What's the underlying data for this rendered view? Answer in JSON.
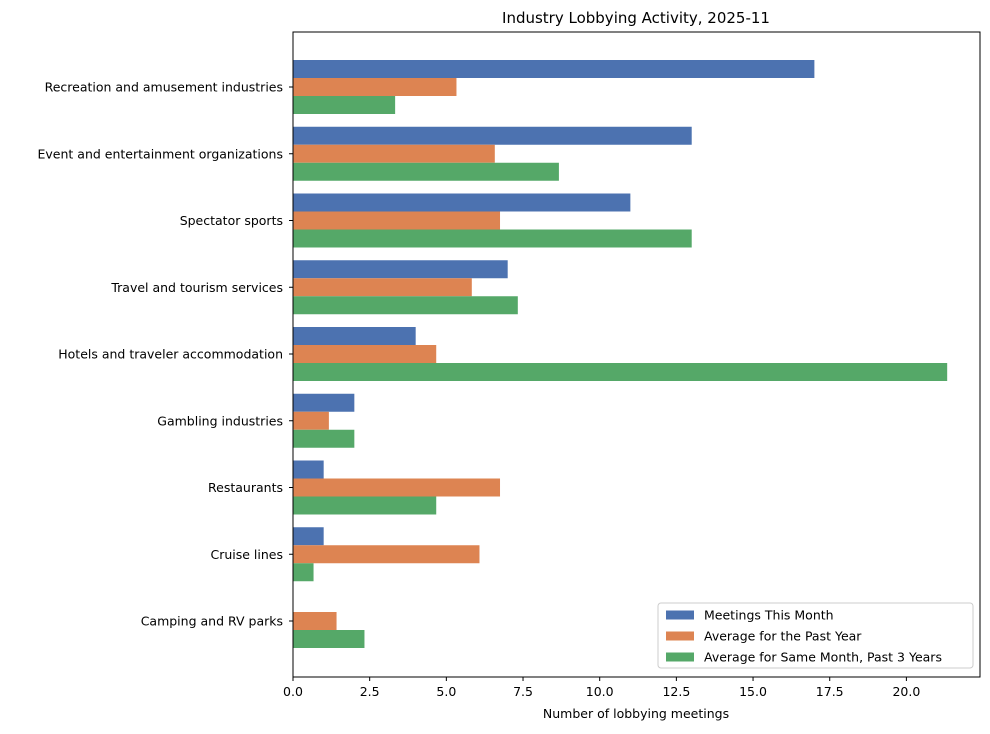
{
  "chart_data": {
    "type": "bar",
    "orientation": "horizontal",
    "title": "Industry Lobbying Activity, 2025-11",
    "xlabel": "Number of lobbying meetings",
    "ylabel": "",
    "xlim": [
      0,
      22.4
    ],
    "x_ticks": [
      0.0,
      2.5,
      5.0,
      7.5,
      10.0,
      12.5,
      15.0,
      17.5,
      20.0
    ],
    "x_tick_labels": [
      "0.0",
      "2.5",
      "5.0",
      "7.5",
      "10.0",
      "12.5",
      "15.0",
      "17.5",
      "20.0"
    ],
    "grid": false,
    "legend_position": "lower-right",
    "categories": [
      "Recreation and amusement industries",
      "Event and entertainment organizations",
      "Spectator sports",
      "Travel and tourism services",
      "Hotels and traveler accommodation",
      "Gambling industries",
      "Restaurants",
      "Cruise lines",
      "Camping and RV parks"
    ],
    "series": [
      {
        "name": "Meetings This Month",
        "color": "#4c72b0",
        "values": [
          17,
          13,
          11,
          7,
          4,
          2,
          1,
          1,
          0
        ]
      },
      {
        "name": "Average for the Past Year",
        "color": "#dd8452",
        "values": [
          5.33,
          6.58,
          6.75,
          5.83,
          4.67,
          1.17,
          6.75,
          6.08,
          1.42
        ]
      },
      {
        "name": "Average for Same Month, Past 3 Years",
        "color": "#55a868",
        "values": [
          3.33,
          8.67,
          13.0,
          7.33,
          21.33,
          2.0,
          4.67,
          0.67,
          2.33
        ]
      }
    ]
  }
}
